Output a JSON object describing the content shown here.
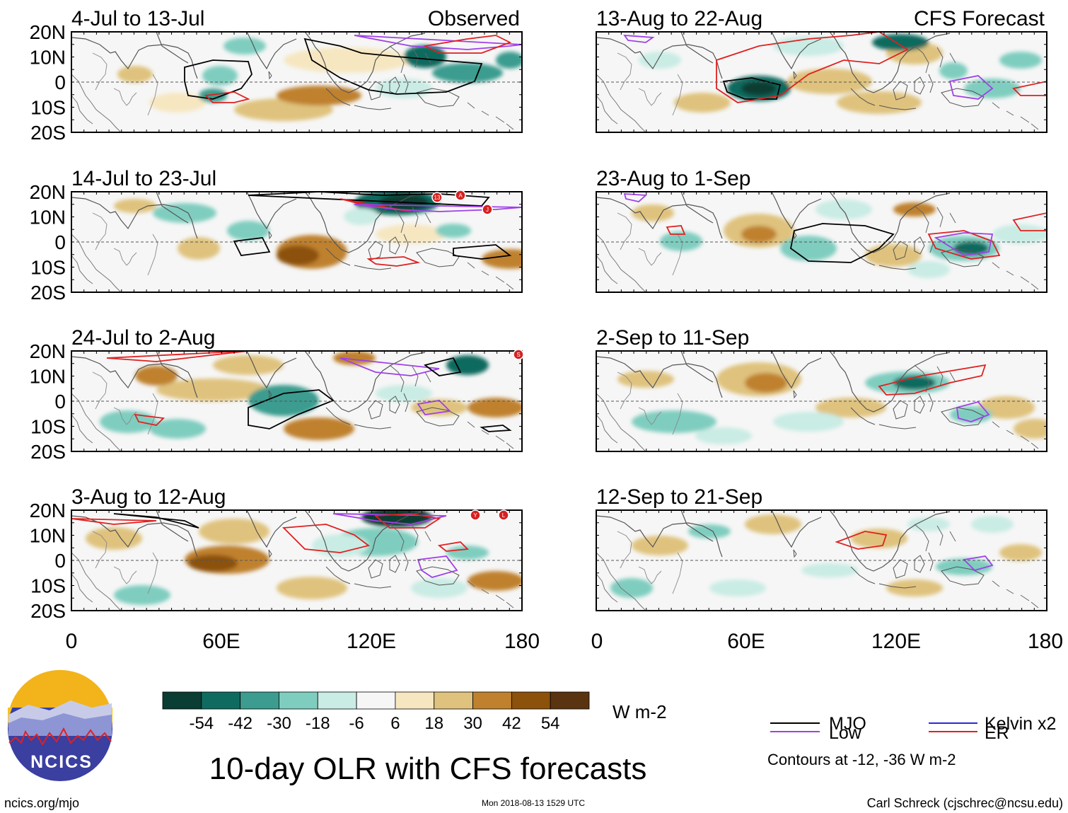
{
  "title": "10-day OLR with CFS forecasts",
  "left_column_label": "Observed",
  "right_column_label": "CFS Forecast",
  "panels_left": [
    {
      "period": "4-Jul to 13-Jul"
    },
    {
      "period": "14-Jul to 23-Jul"
    },
    {
      "period": "24-Jul to 2-Aug"
    },
    {
      "period": "3-Aug to 12-Aug"
    }
  ],
  "panels_right": [
    {
      "period": "13-Aug to 22-Aug"
    },
    {
      "period": "23-Aug to 1-Sep"
    },
    {
      "period": "2-Sep to 11-Sep"
    },
    {
      "period": "12-Sep to 21-Sep"
    }
  ],
  "lat_labels": [
    "20N",
    "10N",
    "0",
    "10S",
    "20S"
  ],
  "lon_labels": [
    "0",
    "60E",
    "120E",
    "180"
  ],
  "colorbar": {
    "colors": [
      "#0a3d33",
      "#0f6b5f",
      "#3b9c8f",
      "#7fcdbf",
      "#c9ece4",
      "#f6f6f6",
      "#f6e7c1",
      "#dfc27d",
      "#bf812d",
      "#8c510a",
      "#5a3410"
    ],
    "labels": [
      "-54",
      "-42",
      "-30",
      "-18",
      "-6",
      "6",
      "18",
      "30",
      "42",
      "54"
    ],
    "units": "W m-2"
  },
  "legend": {
    "items": [
      {
        "label": "MJO",
        "color": "#000000"
      },
      {
        "label": "Kelvin x2",
        "color": "#2b2bd6"
      },
      {
        "label": "Low",
        "color": "#a040e8"
      },
      {
        "label": "ER",
        "color": "#e02020"
      }
    ],
    "note": "Contours at -12, -36 W m-2"
  },
  "logo": {
    "text": "NCICS"
  },
  "footer": {
    "left": "ncics.org/mjo",
    "center": "Mon 2018-08-13 1529 UTC",
    "right": "Carl Schreck (cjschrec@ncsu.edu)"
  },
  "storm_markers": [
    "13",
    "A",
    "J",
    "S",
    "Y",
    "L"
  ]
}
